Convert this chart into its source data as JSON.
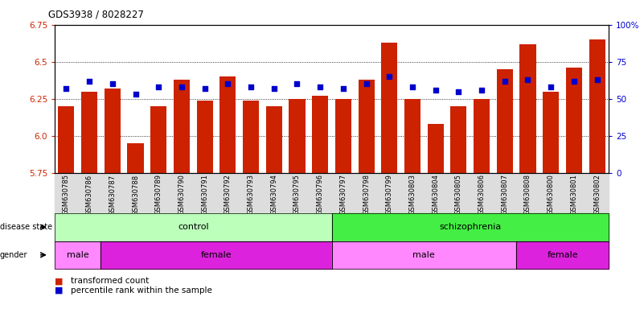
{
  "title": "GDS3938 / 8028227",
  "samples": [
    "GSM630785",
    "GSM630786",
    "GSM630787",
    "GSM630788",
    "GSM630789",
    "GSM630790",
    "GSM630791",
    "GSM630792",
    "GSM630793",
    "GSM630794",
    "GSM630795",
    "GSM630796",
    "GSM630797",
    "GSM630798",
    "GSM630799",
    "GSM630803",
    "GSM630804",
    "GSM630805",
    "GSM630806",
    "GSM630807",
    "GSM630808",
    "GSM630800",
    "GSM630801",
    "GSM630802"
  ],
  "bar_values": [
    6.2,
    6.3,
    6.32,
    5.95,
    6.2,
    6.38,
    6.24,
    6.4,
    6.24,
    6.2,
    6.25,
    6.27,
    6.25,
    6.38,
    6.63,
    6.25,
    6.08,
    6.2,
    6.25,
    6.45,
    6.62,
    6.3,
    6.46,
    6.65
  ],
  "percentile_values": [
    57,
    62,
    60,
    53,
    58,
    58,
    57,
    60,
    58,
    57,
    60,
    58,
    57,
    60,
    65,
    58,
    56,
    55,
    56,
    62,
    63,
    58,
    62,
    63
  ],
  "ylim_left": [
    5.75,
    6.75
  ],
  "ylim_right": [
    0,
    100
  ],
  "bar_color": "#cc2200",
  "dot_color": "#0000cc",
  "disease_state_groups": [
    {
      "label": "control",
      "start": 0,
      "end": 12,
      "color": "#bbffbb"
    },
    {
      "label": "schizophrenia",
      "start": 12,
      "end": 24,
      "color": "#44ee44"
    }
  ],
  "gender_groups": [
    {
      "label": "male",
      "start": 0,
      "end": 2,
      "color": "#ff88ff"
    },
    {
      "label": "female",
      "start": 2,
      "end": 12,
      "color": "#dd22dd"
    },
    {
      "label": "male",
      "start": 12,
      "end": 20,
      "color": "#ff88ff"
    },
    {
      "label": "female",
      "start": 20,
      "end": 24,
      "color": "#dd22dd"
    }
  ],
  "right_yticks": [
    0,
    25,
    50,
    75,
    100
  ],
  "right_yticklabels": [
    "0",
    "25",
    "50",
    "75",
    "100%"
  ],
  "left_yticks": [
    5.75,
    6.0,
    6.25,
    6.5,
    6.75
  ],
  "bar_width": 0.7
}
